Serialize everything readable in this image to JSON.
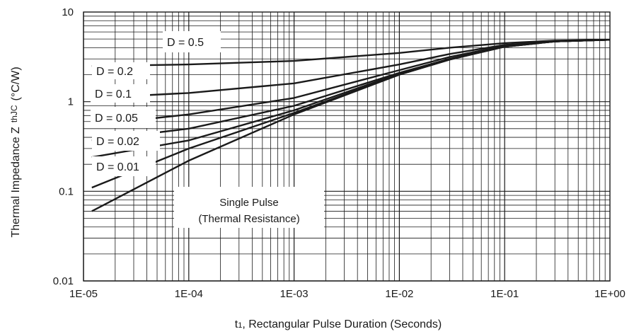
{
  "chart_data": {
    "type": "line",
    "xscale": "log",
    "yscale": "log",
    "xlim": [
      1e-05,
      1
    ],
    "ylim": [
      0.01,
      10
    ],
    "grid": true,
    "xlabel": "t1, Rectangular Pulse Duration (Seconds)",
    "xlabel_main": "t",
    "xlabel_sub": "1",
    "xlabel_rest": ", Rectangular Pulse Duration (Seconds)",
    "ylabel": "Thermal Impedance Z thJC (°C/W)",
    "ylabel_main": "Thermal Impedance Z",
    "ylabel_sub": "thJC",
    "ylabel_rest": "(°C/W)",
    "x_tick_labels": [
      "1E-05",
      "1E-04",
      "1E-03",
      "1E-02",
      "1E-01",
      "1E+00"
    ],
    "y_tick_labels": [
      "0.01",
      "0.1",
      "1",
      "10"
    ],
    "series": [
      {
        "name": "D = 0.5",
        "x": [
          1.2e-05,
          0.0001,
          0.001,
          0.01,
          0.03,
          0.1,
          0.3,
          1
        ],
        "y": [
          2.5,
          2.6,
          2.85,
          3.5,
          4.0,
          4.5,
          4.8,
          4.9
        ]
      },
      {
        "name": "D = 0.2",
        "x": [
          1.2e-05,
          0.0001,
          0.001,
          0.01,
          0.03,
          0.1,
          0.3,
          1
        ],
        "y": [
          1.1,
          1.25,
          1.6,
          2.6,
          3.4,
          4.3,
          4.7,
          4.9
        ]
      },
      {
        "name": "D = 0.1",
        "x": [
          1.2e-05,
          0.0001,
          0.001,
          0.01,
          0.03,
          0.1,
          0.3,
          1
        ],
        "y": [
          0.55,
          0.72,
          1.1,
          2.25,
          3.15,
          4.2,
          4.7,
          4.9
        ]
      },
      {
        "name": "D = 0.05",
        "x": [
          1.2e-05,
          0.0001,
          0.001,
          0.01,
          0.03,
          0.1,
          0.3,
          1
        ],
        "y": [
          0.37,
          0.5,
          0.9,
          2.1,
          3.0,
          4.15,
          4.7,
          4.9
        ]
      },
      {
        "name": "D = 0.02",
        "x": [
          1.2e-05,
          0.0001,
          0.001,
          0.01,
          0.03,
          0.1,
          0.3,
          1
        ],
        "y": [
          0.24,
          0.37,
          0.8,
          2.05,
          3.0,
          4.1,
          4.7,
          4.9
        ]
      },
      {
        "name": "D = 0.01",
        "x": [
          1.2e-05,
          0.0001,
          0.001,
          0.01,
          0.03,
          0.1,
          0.3,
          1
        ],
        "y": [
          0.11,
          0.3,
          0.75,
          2.0,
          2.95,
          4.1,
          4.7,
          4.9
        ]
      },
      {
        "name": "Single Pulse (Thermal Resistance)",
        "x": [
          1.2e-05,
          0.0001,
          0.001,
          0.01,
          0.03,
          0.1,
          0.3,
          1
        ],
        "y": [
          0.06,
          0.22,
          0.72,
          2.0,
          2.95,
          4.1,
          4.7,
          4.9
        ]
      }
    ],
    "annotations": {
      "d05": "D = 0.5",
      "d02": "D = 0.2",
      "d01": "D = 0.1",
      "d005": "D = 0.05",
      "d002": "D = 0.02",
      "d001": "D = 0.01",
      "single_line1": "Single Pulse",
      "single_line2": "(Thermal Resistance)"
    },
    "colors": {
      "line": "#1a1a1a",
      "grid": "#1a1a1a",
      "background": "#ffffff"
    }
  }
}
